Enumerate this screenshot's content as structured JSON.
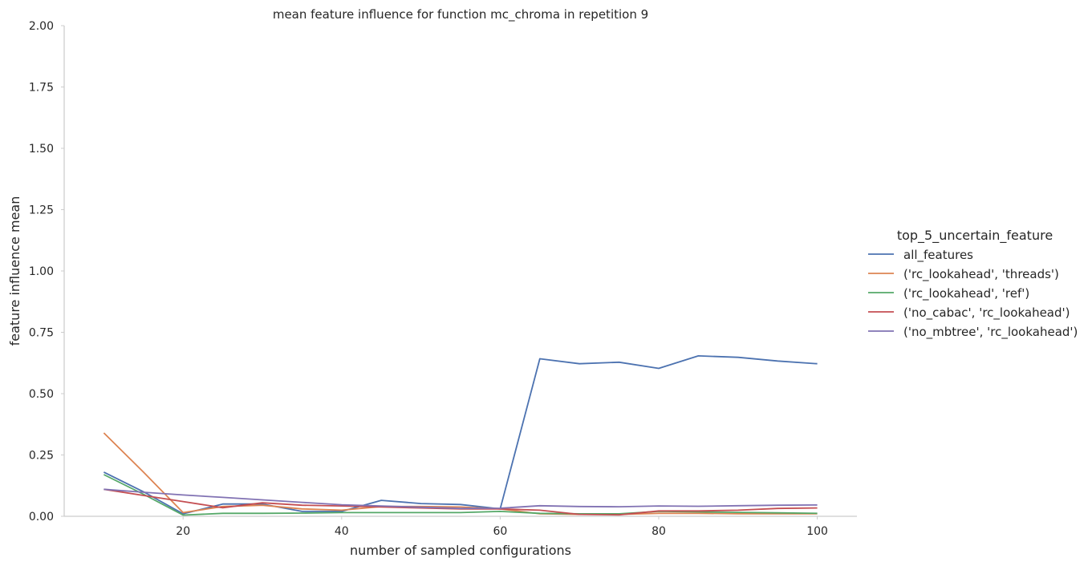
{
  "chart_data": {
    "type": "line",
    "title": "mean feature influence for function mc_chroma in repetition 9",
    "xlabel": "number of sampled configurations",
    "ylabel": "feature influence mean",
    "xlim": [
      5,
      105
    ],
    "ylim": [
      0,
      2.0
    ],
    "xticks": [
      20,
      40,
      60,
      80,
      100
    ],
    "yticks": [
      0.0,
      0.25,
      0.5,
      0.75,
      1.0,
      1.25,
      1.5,
      1.75,
      2.0
    ],
    "ytick_labels": [
      "0.00",
      "0.25",
      "0.50",
      "0.75",
      "1.00",
      "1.25",
      "1.50",
      "1.75",
      "2.00"
    ],
    "grid": false,
    "legend_title": "top_5_uncertain_feature",
    "legend_position": "right",
    "x": [
      10,
      15,
      20,
      25,
      30,
      35,
      40,
      45,
      50,
      55,
      60,
      65,
      70,
      75,
      80,
      85,
      90,
      95,
      100
    ],
    "series": [
      {
        "name": "all_features",
        "color": "#4c72b0",
        "values": [
          0.18,
          0.1,
          0.01,
          0.05,
          0.05,
          0.02,
          0.02,
          0.065,
          0.052,
          0.048,
          0.03,
          0.642,
          0.622,
          0.628,
          0.603,
          0.654,
          0.648,
          0.633,
          0.622
        ]
      },
      {
        "name": "('rc_lookahead', 'threads')",
        "color": "#dd8452",
        "values": [
          0.34,
          0.18,
          0.015,
          0.04,
          0.045,
          0.03,
          0.025,
          0.04,
          0.04,
          0.038,
          0.03,
          0.01,
          0.008,
          0.008,
          0.012,
          0.012,
          0.01,
          0.01,
          0.01
        ]
      },
      {
        "name": "('rc_lookahead', 'ref')",
        "color": "#55a868",
        "values": [
          0.17,
          0.09,
          0.005,
          0.012,
          0.012,
          0.013,
          0.015,
          0.015,
          0.015,
          0.015,
          0.02,
          0.012,
          0.01,
          0.01,
          0.02,
          0.018,
          0.016,
          0.014,
          0.012
        ]
      },
      {
        "name": "('no_cabac', 'rc_lookahead')",
        "color": "#c44e52",
        "values": [
          0.11,
          0.085,
          0.06,
          0.035,
          0.055,
          0.045,
          0.042,
          0.038,
          0.034,
          0.03,
          0.03,
          0.025,
          0.008,
          0.006,
          0.022,
          0.022,
          0.025,
          0.032,
          0.034
        ]
      },
      {
        "name": "('no_mbtree', 'rc_lookahead')",
        "color": "#8172b3",
        "values": [
          0.11,
          0.098,
          0.087,
          0.077,
          0.067,
          0.057,
          0.047,
          0.042,
          0.037,
          0.032,
          0.033,
          0.043,
          0.04,
          0.039,
          0.042,
          0.041,
          0.043,
          0.045,
          0.046
        ]
      }
    ]
  }
}
